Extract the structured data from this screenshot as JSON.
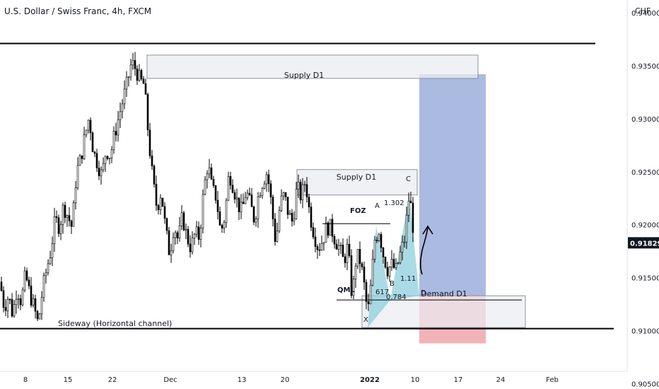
{
  "header": {
    "symbol_title": "U.S. Dollar / Swiss Franc, 4h, FXCM",
    "currency": "CHF"
  },
  "colors": {
    "up_candle": "#ffffff",
    "down_candle": "#000000",
    "wick": "#000000",
    "zone_fill": "#e9ecf1",
    "zone_border": "#787b86",
    "target_fill": "#8fa3d6",
    "stop_fill": "#eea6ab",
    "harmonic_fill": "#8ecfdb",
    "price_badge": "#131722"
  },
  "chart_data": {
    "type": "candlestick",
    "title": "U.S. Dollar / Swiss Franc, 4h, FXCM",
    "ylabel": "CHF",
    "ylim": [
      0.9045,
      0.9412
    ],
    "y_ticks": [
      "0.94000",
      "0.93500",
      "0.93000",
      "0.92500",
      "0.92000",
      "0.91500",
      "0.91000",
      "0.90500"
    ],
    "x_ticks": [
      "8",
      "15",
      "22",
      "Dec",
      "13",
      "20",
      "2022",
      "10",
      "17",
      "24",
      "Feb"
    ],
    "last_price": "0.91829",
    "price_path": [
      [
        0,
        0.9146
      ],
      [
        6,
        0.9122
      ],
      [
        12,
        0.9133
      ],
      [
        18,
        0.9115
      ],
      [
        24,
        0.9141
      ],
      [
        30,
        0.9127
      ],
      [
        36,
        0.9153
      ],
      [
        42,
        0.9135
      ],
      [
        48,
        0.9122
      ],
      [
        54,
        0.9106
      ],
      [
        60,
        0.9138
      ],
      [
        66,
        0.9158
      ],
      [
        72,
        0.9176
      ],
      [
        78,
        0.9205
      ],
      [
        84,
        0.9198
      ],
      [
        90,
        0.9218
      ],
      [
        96,
        0.9208
      ],
      [
        102,
        0.9197
      ],
      [
        108,
        0.9249
      ],
      [
        114,
        0.9262
      ],
      [
        120,
        0.9283
      ],
      [
        126,
        0.9302
      ],
      [
        132,
        0.9269
      ],
      [
        138,
        0.9258
      ],
      [
        144,
        0.9246
      ],
      [
        150,
        0.9271
      ],
      [
        156,
        0.9265
      ],
      [
        162,
        0.9285
      ],
      [
        168,
        0.9302
      ],
      [
        174,
        0.9318
      ],
      [
        180,
        0.9334
      ],
      [
        186,
        0.9353
      ],
      [
        192,
        0.9347
      ],
      [
        198,
        0.9336
      ],
      [
        204,
        0.9332
      ],
      [
        210,
        0.9283
      ],
      [
        216,
        0.9242
      ],
      [
        222,
        0.9215
      ],
      [
        228,
        0.9232
      ],
      [
        234,
        0.9196
      ],
      [
        240,
        0.9172
      ],
      [
        246,
        0.92
      ],
      [
        252,
        0.9185
      ],
      [
        258,
        0.9208
      ],
      [
        264,
        0.9189
      ],
      [
        270,
        0.9178
      ],
      [
        276,
        0.9192
      ],
      [
        282,
        0.9188
      ],
      [
        288,
        0.9232
      ],
      [
        294,
        0.9258
      ],
      [
        300,
        0.9233
      ],
      [
        306,
        0.9226
      ],
      [
        312,
        0.9192
      ],
      [
        318,
        0.9208
      ],
      [
        324,
        0.925
      ],
      [
        330,
        0.9236
      ],
      [
        336,
        0.922
      ],
      [
        342,
        0.9212
      ],
      [
        348,
        0.9232
      ],
      [
        354,
        0.9219
      ],
      [
        360,
        0.9204
      ],
      [
        366,
        0.923
      ],
      [
        372,
        0.9242
      ],
      [
        378,
        0.925
      ],
      [
        384,
        0.9218
      ],
      [
        390,
        0.9182
      ],
      [
        396,
        0.922
      ],
      [
        402,
        0.9228
      ],
      [
        408,
        0.921
      ],
      [
        414,
        0.9202
      ],
      [
        420,
        0.9236
      ],
      [
        426,
        0.9226
      ],
      [
        432,
        0.9242
      ],
      [
        438,
        0.921
      ],
      [
        444,
        0.9192
      ],
      [
        450,
        0.9178
      ],
      [
        456,
        0.9185
      ],
      [
        462,
        0.9198
      ],
      [
        468,
        0.9197
      ],
      [
        474,
        0.9186
      ],
      [
        480,
        0.9178
      ],
      [
        486,
        0.9165
      ],
      [
        492,
        0.918
      ],
      [
        498,
        0.913
      ],
      [
        504,
        0.9172
      ],
      [
        510,
        0.9165
      ],
      [
        516,
        0.9138
      ],
      [
        520,
        0.9115
      ],
      [
        524,
        0.914
      ],
      [
        530,
        0.9186
      ],
      [
        536,
        0.9195
      ],
      [
        542,
        0.9172
      ],
      [
        548,
        0.9158
      ],
      [
        554,
        0.9162
      ],
      [
        560,
        0.9157
      ],
      [
        566,
        0.9172
      ],
      [
        572,
        0.9186
      ],
      [
        578,
        0.9224
      ],
      [
        582,
        0.9215
      ],
      [
        586,
        0.9183
      ]
    ],
    "drawings": {
      "resistance_line": 0.9371,
      "support_line": 0.9102,
      "qml_line": 0.9129,
      "foz_line": 0.9201,
      "supply_zones": [
        {
          "top": 0.936,
          "bottom": 0.9338
        },
        {
          "top": 0.9252,
          "bottom": 0.9228
        }
      ],
      "demand_zone": {
        "top": 0.9133,
        "bottom": 0.9103
      },
      "position": {
        "entry": 0.9133,
        "target": 0.9342,
        "stop": 0.9088
      },
      "harmonic_points": [
        {
          "label": "X",
          "price": 0.9103
        },
        {
          "label": "A",
          "price": 0.9199
        },
        {
          "label": "B",
          "price": 0.9129
        },
        {
          "label": "C",
          "price": 0.9228
        },
        {
          "label": "D",
          "price": 0.9133
        }
      ]
    }
  },
  "annotations": {
    "supply_upper": "Supply D1",
    "supply_lower": "Supply D1",
    "demand": "Demand D1",
    "sideway": "Sideway (Horizontal channel)",
    "foz": "FOZ",
    "qml": "QML",
    "point_x": "X",
    "point_a": "A",
    "point_b": "B",
    "point_c": "C",
    "point_d": "D",
    "ratio_1302": "1.302",
    "ratio_111": "1.11",
    "ratio_617": "617",
    "ratio_0784": "0.784"
  }
}
